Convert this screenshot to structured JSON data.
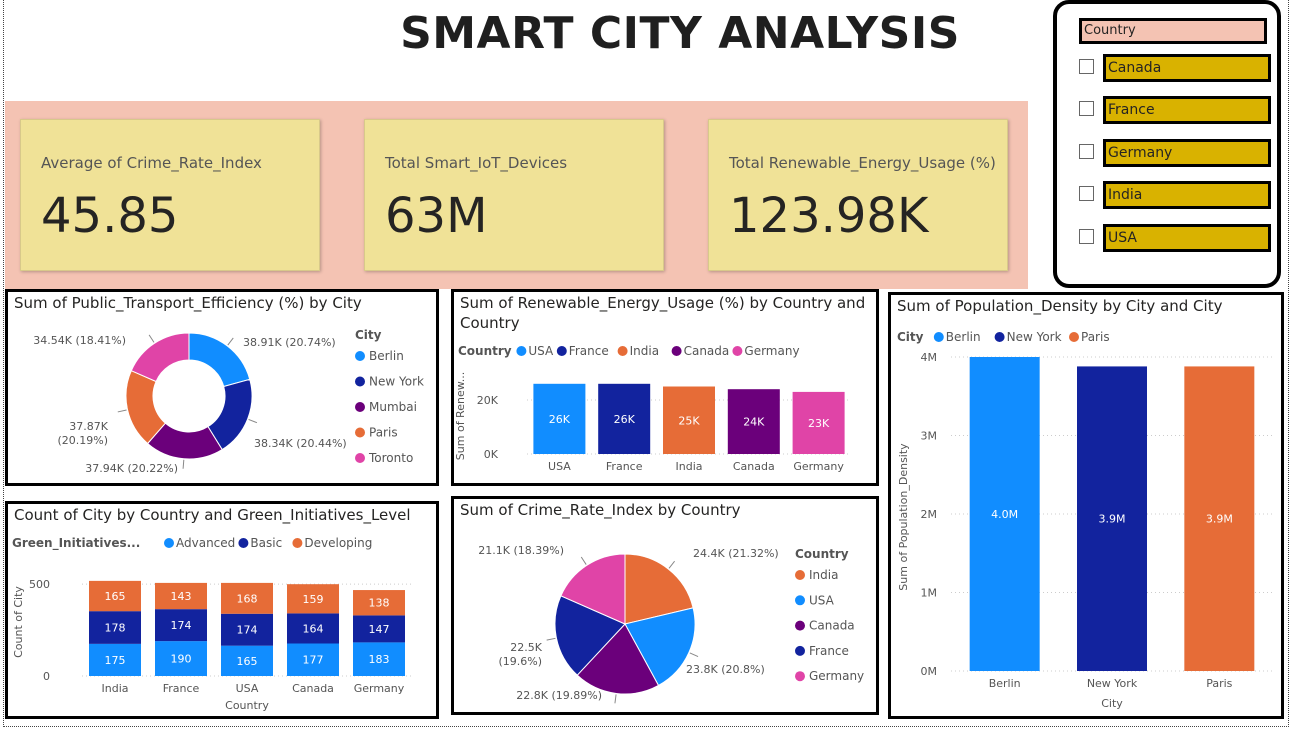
{
  "title": "SMART CITY ANALYSIS",
  "kpis": [
    {
      "label": "Average of Crime_Rate_Index",
      "value": "45.85"
    },
    {
      "label": "Total Smart_IoT_Devices",
      "value": "63M"
    },
    {
      "label": "Total Renewable_Energy_Usage (%)",
      "value": "123.98K"
    }
  ],
  "slicer": {
    "header": "Country",
    "items": [
      "Canada",
      "France",
      "Germany",
      "India",
      "USA"
    ]
  },
  "colors": {
    "kpi_band": "#f4c3b3",
    "kpi_card": "#f0e297",
    "slicer_item": "#d9b200",
    "blue": "#118dff",
    "dark_blue": "#12239e",
    "orange": "#e66c37",
    "purple": "#6b007b",
    "pink": "#e044a7"
  },
  "chart_data": [
    {
      "id": "transport",
      "type": "pie",
      "style": "donut",
      "title": "Sum of Public_Transport_Efficiency (%) by City",
      "legend_title": "City",
      "legend_position": "right",
      "slices": [
        {
          "name": "Berlin",
          "value": 38910,
          "label": "38.91K (20.74%)",
          "color": "#118dff"
        },
        {
          "name": "New York",
          "value": 38340,
          "label": "38.34K (20.44%)",
          "color": "#12239e"
        },
        {
          "name": "Mumbai",
          "value": 37940,
          "label": "37.94K (20.22%)",
          "color": "#6b007b"
        },
        {
          "name": "Paris",
          "value": 37870,
          "label_lines": [
            "37.87K",
            "(20.19%)"
          ],
          "color": "#e66c37"
        },
        {
          "name": "Toronto",
          "value": 34540,
          "label": "34.54K (18.41%)",
          "color": "#e044a7"
        }
      ]
    },
    {
      "id": "renewable",
      "type": "bar",
      "title_lines": [
        "Sum of Renewable_Energy_Usage (%) by Country and",
        "Country"
      ],
      "legend_title": "Country",
      "legend_position": "top-left",
      "ylabel": "Sum of Renew...",
      "ylim": [
        0,
        30000
      ],
      "yticks": [
        {
          "v": 0,
          "t": "0K"
        },
        {
          "v": 20000,
          "t": "20K"
        }
      ],
      "categories": [
        "USA",
        "France",
        "India",
        "Canada",
        "Germany"
      ],
      "values": [
        26000,
        26000,
        25000,
        24000,
        23000
      ],
      "value_labels": [
        "26K",
        "26K",
        "25K",
        "24K",
        "23K"
      ],
      "colors": [
        "#118dff",
        "#12239e",
        "#e66c37",
        "#6b007b",
        "#e044a7"
      ]
    },
    {
      "id": "population",
      "type": "bar",
      "title": "Sum of Population_Density by City and City",
      "legend_title": "City",
      "legend_position": "top-left",
      "xlabel": "City",
      "ylabel": "Sum of Population_Density",
      "ylim": [
        0,
        4000000
      ],
      "yticks": [
        {
          "v": 0,
          "t": "0M"
        },
        {
          "v": 1000000,
          "t": "1M"
        },
        {
          "v": 2000000,
          "t": "2M"
        },
        {
          "v": 3000000,
          "t": "3M"
        },
        {
          "v": 4000000,
          "t": "4M"
        }
      ],
      "categories": [
        "Berlin",
        "New York",
        "Paris"
      ],
      "values": [
        4000000,
        3880000,
        3880000
      ],
      "value_labels": [
        "4.0M",
        "3.9M",
        "3.9M"
      ],
      "colors": [
        "#118dff",
        "#12239e",
        "#e66c37"
      ]
    },
    {
      "id": "green",
      "type": "bar",
      "stacked": true,
      "title": "Count of City by Country and Green_Initiatives_Level",
      "legend_title": "Green_Initiatives...",
      "legend_position": "top-left",
      "xlabel": "Country",
      "ylabel": "Count of City",
      "ylim": [
        0,
        550
      ],
      "yticks": [
        {
          "v": 0,
          "t": "0"
        },
        {
          "v": 500,
          "t": "500"
        }
      ],
      "categories": [
        "India",
        "France",
        "USA",
        "Canada",
        "Germany"
      ],
      "series": [
        {
          "name": "Advanced",
          "color": "#118dff",
          "values": [
            175,
            190,
            165,
            177,
            183
          ]
        },
        {
          "name": "Basic",
          "color": "#12239e",
          "values": [
            178,
            174,
            174,
            164,
            147
          ]
        },
        {
          "name": "Developing",
          "color": "#e66c37",
          "values": [
            165,
            143,
            168,
            159,
            138
          ]
        }
      ]
    },
    {
      "id": "crime",
      "type": "pie",
      "title": "Sum of Crime_Rate_Index by Country",
      "legend_title": "Country",
      "legend_position": "right",
      "slices": [
        {
          "name": "India",
          "value": 24400,
          "label": "24.4K (21.32%)",
          "color": "#e66c37"
        },
        {
          "name": "USA",
          "value": 23800,
          "label": "23.8K (20.8%)",
          "color": "#118dff"
        },
        {
          "name": "Canada",
          "value": 22800,
          "label": "22.8K (19.89%)",
          "color": "#6b007b"
        },
        {
          "name": "France",
          "value": 22500,
          "label_lines": [
            "22.5K",
            "(19.6%)"
          ],
          "color": "#12239e"
        },
        {
          "name": "Germany",
          "value": 21100,
          "label": "21.1K (18.39%)",
          "color": "#e044a7"
        }
      ]
    }
  ]
}
